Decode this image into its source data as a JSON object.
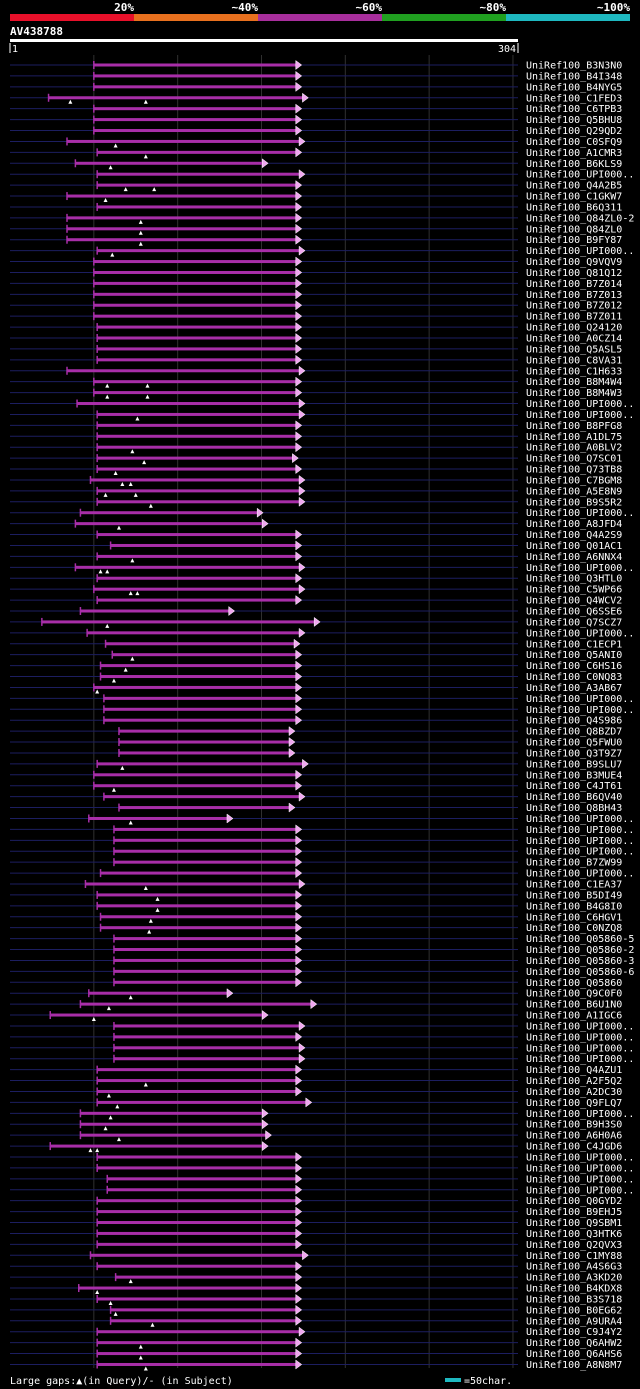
{
  "chart_data": {
    "type": "alignment-overview",
    "query_id": "AV438788",
    "query_length": 304,
    "axis_start": "1",
    "axis_end": "304",
    "identity_scale": [
      {
        "label": "20%",
        "color": "#e8102a"
      },
      {
        "label": "~40%",
        "color": "#e8701e"
      },
      {
        "label": "~60%",
        "color": "#a82e9c"
      },
      {
        "label": "~80%",
        "color": "#20a020"
      },
      {
        "label": "~100%",
        "color": "#1eb8c0"
      }
    ],
    "hit_color": "#a82ea8",
    "query_track_color": "#1c1e60",
    "legend": {
      "gaps_text": "Large gaps:▲(in Query)/- (in Subject)",
      "scale_text": "=50char.",
      "scale_length": 50,
      "scale_color": "#1eb8c0"
    },
    "hits": [
      {
        "name": "UniRef100_B3N3N0",
        "qs": 51,
        "qe": 175,
        "arrow": "right",
        "gaps": []
      },
      {
        "name": "UniRef100_B4I348",
        "qs": 51,
        "qe": 175,
        "arrow": "right",
        "gaps": []
      },
      {
        "name": "UniRef100_B4NYG5",
        "qs": 51,
        "qe": 175,
        "arrow": "right",
        "gaps": []
      },
      {
        "name": "UniRef100_C1FED3",
        "qs": 24,
        "qe": 179,
        "arrow": "right",
        "gaps": [
          37,
          82
        ]
      },
      {
        "name": "UniRef100_C6TPB3",
        "qs": 51,
        "qe": 175,
        "arrow": "right",
        "gaps": []
      },
      {
        "name": "UniRef100_Q5BHU8",
        "qs": 51,
        "qe": 175,
        "arrow": "right",
        "gaps": []
      },
      {
        "name": "UniRef100_Q29QD2",
        "qs": 51,
        "qe": 175,
        "arrow": "right",
        "gaps": []
      },
      {
        "name": "UniRef100_C0SFQ9",
        "qs": 35,
        "qe": 177,
        "arrow": "right",
        "gaps": [
          64
        ]
      },
      {
        "name": "UniRef100_A1CMR3",
        "qs": 53,
        "qe": 175,
        "arrow": "right",
        "gaps": [
          82
        ]
      },
      {
        "name": "UniRef100_B6KLS9",
        "qs": 40,
        "qe": 155,
        "arrow": "right",
        "gaps": [
          61
        ]
      },
      {
        "name": "UniRef100_UPI000..",
        "qs": 53,
        "qe": 177,
        "arrow": "right",
        "gaps": []
      },
      {
        "name": "UniRef100_Q4A2B5",
        "qs": 53,
        "qe": 175,
        "arrow": "right",
        "gaps": [
          70,
          87
        ]
      },
      {
        "name": "UniRef100_C1GKW7",
        "qs": 35,
        "qe": 175,
        "arrow": "right",
        "gaps": [
          58
        ]
      },
      {
        "name": "UniRef100_B6Q311",
        "qs": 53,
        "qe": 175,
        "arrow": "right",
        "gaps": []
      },
      {
        "name": "UniRef100_Q84ZL0-2",
        "qs": 35,
        "qe": 175,
        "arrow": "right",
        "gaps": [
          79
        ]
      },
      {
        "name": "UniRef100_Q84ZL0",
        "qs": 35,
        "qe": 175,
        "arrow": "right",
        "gaps": [
          79
        ]
      },
      {
        "name": "UniRef100_B9FY87",
        "qs": 35,
        "qe": 175,
        "arrow": "right",
        "gaps": [
          79
        ]
      },
      {
        "name": "UniRef100_UPI000..",
        "qs": 53,
        "qe": 177,
        "arrow": "right",
        "gaps": [
          62
        ]
      },
      {
        "name": "UniRef100_Q9VQV9",
        "qs": 51,
        "qe": 175,
        "arrow": "right",
        "gaps": []
      },
      {
        "name": "UniRef100_Q81Q12",
        "qs": 51,
        "qe": 175,
        "arrow": "right",
        "gaps": []
      },
      {
        "name": "UniRef100_B7Z014",
        "qs": 51,
        "qe": 175,
        "arrow": "right",
        "gaps": []
      },
      {
        "name": "UniRef100_B7Z013",
        "qs": 51,
        "qe": 175,
        "arrow": "right",
        "gaps": []
      },
      {
        "name": "UniRef100_B7Z012",
        "qs": 51,
        "qe": 175,
        "arrow": "right",
        "gaps": []
      },
      {
        "name": "UniRef100_B7Z011",
        "qs": 51,
        "qe": 175,
        "arrow": "right",
        "gaps": []
      },
      {
        "name": "UniRef100_Q24120",
        "qs": 53,
        "qe": 175,
        "arrow": "right",
        "gaps": []
      },
      {
        "name": "UniRef100_A0CZ14",
        "qs": 53,
        "qe": 175,
        "arrow": "right",
        "gaps": []
      },
      {
        "name": "UniRef100_Q5ASL5",
        "qs": 53,
        "qe": 175,
        "arrow": "right",
        "gaps": []
      },
      {
        "name": "UniRef100_C8VA31",
        "qs": 53,
        "qe": 175,
        "arrow": "right",
        "gaps": []
      },
      {
        "name": "UniRef100_C1H633",
        "qs": 35,
        "qe": 177,
        "arrow": "right",
        "gaps": []
      },
      {
        "name": "UniRef100_B8M4W4",
        "qs": 51,
        "qe": 175,
        "arrow": "right",
        "gaps": [
          59,
          83
        ]
      },
      {
        "name": "UniRef100_B8M4W3",
        "qs": 51,
        "qe": 175,
        "arrow": "right",
        "gaps": [
          59,
          83
        ]
      },
      {
        "name": "UniRef100_UPI000..",
        "qs": 41,
        "qe": 177,
        "arrow": "right",
        "gaps": []
      },
      {
        "name": "UniRef100_UPI000..",
        "qs": 53,
        "qe": 177,
        "arrow": "right",
        "gaps": [
          77
        ]
      },
      {
        "name": "UniRef100_B8PFG8",
        "qs": 53,
        "qe": 175,
        "arrow": "right",
        "gaps": []
      },
      {
        "name": "UniRef100_A1DL75",
        "qs": 53,
        "qe": 175,
        "arrow": "right",
        "gaps": []
      },
      {
        "name": "UniRef100_A0BLV2",
        "qs": 53,
        "qe": 175,
        "arrow": "right",
        "gaps": [
          74
        ]
      },
      {
        "name": "UniRef100_Q7SC01",
        "qs": 53,
        "qe": 173,
        "arrow": "right",
        "gaps": [
          81
        ]
      },
      {
        "name": "UniRef100_Q73TB8",
        "qs": 53,
        "qe": 175,
        "arrow": "right",
        "gaps": [
          64
        ]
      },
      {
        "name": "UniRef100_C7BGM8",
        "qs": 49,
        "qe": 177,
        "arrow": "right",
        "gaps": [
          68,
          73
        ]
      },
      {
        "name": "UniRef100_A5E8N9",
        "qs": 53,
        "qe": 177,
        "arrow": "right",
        "gaps": [
          58,
          76
        ]
      },
      {
        "name": "UniRef100_B9S5R2",
        "qs": 53,
        "qe": 177,
        "arrow": "right",
        "gaps": [
          85
        ]
      },
      {
        "name": "UniRef100_UPI000..",
        "qs": 43,
        "qe": 152,
        "arrow": "right",
        "gaps": []
      },
      {
        "name": "UniRef100_A8JFD4",
        "qs": 40,
        "qe": 155,
        "arrow": "right",
        "gaps": [
          66
        ]
      },
      {
        "name": "UniRef100_Q4A2S9",
        "qs": 53,
        "qe": 175,
        "arrow": "right",
        "gaps": []
      },
      {
        "name": "UniRef100_Q01AC1",
        "qs": 61,
        "qe": 175,
        "arrow": "right",
        "gaps": []
      },
      {
        "name": "UniRef100_A6NNX4",
        "qs": 53,
        "qe": 175,
        "arrow": "right",
        "gaps": [
          74
        ]
      },
      {
        "name": "UniRef100_UPI000..",
        "qs": 40,
        "qe": 177,
        "arrow": "right",
        "gaps": [
          55,
          59
        ]
      },
      {
        "name": "UniRef100_Q3HTL0",
        "qs": 53,
        "qe": 175,
        "arrow": "right",
        "gaps": []
      },
      {
        "name": "UniRef100_C5WP66",
        "qs": 51,
        "qe": 177,
        "arrow": "right",
        "gaps": [
          73,
          77
        ]
      },
      {
        "name": "UniRef100_Q4WCV2",
        "qs": 53,
        "qe": 175,
        "arrow": "right",
        "gaps": []
      },
      {
        "name": "UniRef100_Q6SSE6",
        "qs": 43,
        "qe": 135,
        "arrow": "right",
        "gaps": []
      },
      {
        "name": "UniRef100_Q7SCZ7",
        "qs": 20,
        "qe": 186,
        "arrow": "right",
        "gaps": [
          59
        ]
      },
      {
        "name": "UniRef100_UPI000..",
        "qs": 47,
        "qe": 177,
        "arrow": "right",
        "gaps": []
      },
      {
        "name": "UniRef100_C1ECP1",
        "qs": 58,
        "qe": 174,
        "arrow": "right",
        "gaps": []
      },
      {
        "name": "UniRef100_Q5ANI0",
        "qs": 62,
        "qe": 175,
        "arrow": "right",
        "gaps": [
          74
        ]
      },
      {
        "name": "UniRef100_C6HS16",
        "qs": 55,
        "qe": 175,
        "arrow": "right",
        "gaps": [
          70
        ]
      },
      {
        "name": "UniRef100_C0NQ83",
        "qs": 55,
        "qe": 175,
        "arrow": "right",
        "gaps": [
          63
        ]
      },
      {
        "name": "UniRef100_A3AB67",
        "qs": 51,
        "qe": 175,
        "arrow": "right",
        "gaps": [
          53
        ]
      },
      {
        "name": "UniRef100_UPI000..",
        "qs": 57,
        "qe": 175,
        "arrow": "right",
        "gaps": []
      },
      {
        "name": "UniRef100_UPI000..",
        "qs": 57,
        "qe": 175,
        "arrow": "right",
        "gaps": []
      },
      {
        "name": "UniRef100_Q4S986",
        "qs": 57,
        "qe": 175,
        "arrow": "right",
        "gaps": []
      },
      {
        "name": "UniRef100_Q8BZD7",
        "qs": 66,
        "qe": 171,
        "arrow": "right",
        "gaps": []
      },
      {
        "name": "UniRef100_Q5FWU0",
        "qs": 66,
        "qe": 171,
        "arrow": "right",
        "gaps": []
      },
      {
        "name": "UniRef100_Q3T9Z7",
        "qs": 66,
        "qe": 171,
        "arrow": "right",
        "gaps": []
      },
      {
        "name": "UniRef100_B9SLU7",
        "qs": 53,
        "qe": 179,
        "arrow": "right",
        "gaps": [
          68
        ]
      },
      {
        "name": "UniRef100_B3MUE4",
        "qs": 51,
        "qe": 175,
        "arrow": "right",
        "gaps": []
      },
      {
        "name": "UniRef100_C4JT61",
        "qs": 51,
        "qe": 175,
        "arrow": "right",
        "gaps": [
          63
        ]
      },
      {
        "name": "UniRef100_B6QV40",
        "qs": 57,
        "qe": 177,
        "arrow": "right",
        "gaps": []
      },
      {
        "name": "UniRef100_Q8BH43",
        "qs": 66,
        "qe": 171,
        "arrow": "right",
        "gaps": []
      },
      {
        "name": "UniRef100_UPI000..",
        "qs": 48,
        "qe": 134,
        "arrow": "right",
        "gaps": [
          73
        ]
      },
      {
        "name": "UniRef100_UPI000..",
        "qs": 63,
        "qe": 175,
        "arrow": "right",
        "gaps": []
      },
      {
        "name": "UniRef100_UPI000..",
        "qs": 63,
        "qe": 175,
        "arrow": "right",
        "gaps": []
      },
      {
        "name": "UniRef100_UPI000..",
        "qs": 63,
        "qe": 175,
        "arrow": "right",
        "gaps": []
      },
      {
        "name": "UniRef100_B7ZW99",
        "qs": 63,
        "qe": 175,
        "arrow": "right",
        "gaps": []
      },
      {
        "name": "UniRef100_UPI000..",
        "qs": 55,
        "qe": 175,
        "arrow": "right",
        "gaps": []
      },
      {
        "name": "UniRef100_C1EA37",
        "qs": 46,
        "qe": 177,
        "arrow": "right",
        "gaps": [
          82
        ]
      },
      {
        "name": "UniRef100_B5DI49",
        "qs": 53,
        "qe": 175,
        "arrow": "right",
        "gaps": [
          89
        ]
      },
      {
        "name": "UniRef100_B4G8I0",
        "qs": 53,
        "qe": 175,
        "arrow": "right",
        "gaps": [
          89
        ]
      },
      {
        "name": "UniRef100_C6HGV1",
        "qs": 55,
        "qe": 175,
        "arrow": "right",
        "gaps": [
          85
        ]
      },
      {
        "name": "UniRef100_C0NZQ8",
        "qs": 55,
        "qe": 175,
        "arrow": "right",
        "gaps": [
          84
        ]
      },
      {
        "name": "UniRef100_Q05860-5",
        "qs": 63,
        "qe": 175,
        "arrow": "right",
        "gaps": []
      },
      {
        "name": "UniRef100_Q05860-2",
        "qs": 63,
        "qe": 175,
        "arrow": "right",
        "gaps": []
      },
      {
        "name": "UniRef100_Q05860-3",
        "qs": 63,
        "qe": 175,
        "arrow": "right",
        "gaps": []
      },
      {
        "name": "UniRef100_Q05860-6",
        "qs": 63,
        "qe": 175,
        "arrow": "right",
        "gaps": []
      },
      {
        "name": "UniRef100_Q05860",
        "qs": 63,
        "qe": 175,
        "arrow": "right",
        "gaps": []
      },
      {
        "name": "UniRef100_Q9C0F0",
        "qs": 48,
        "qe": 134,
        "arrow": "right",
        "gaps": [
          73
        ]
      },
      {
        "name": "UniRef100_B6U1N0",
        "qs": 43,
        "qe": 184,
        "arrow": "right",
        "gaps": [
          60
        ]
      },
      {
        "name": "UniRef100_A1IGC6",
        "qs": 25,
        "qe": 155,
        "arrow": "right",
        "gaps": [
          51
        ]
      },
      {
        "name": "UniRef100_UPI000..",
        "qs": 63,
        "qe": 177,
        "arrow": "right",
        "gaps": []
      },
      {
        "name": "UniRef100_UPI000..",
        "qs": 63,
        "qe": 175,
        "arrow": "right",
        "gaps": []
      },
      {
        "name": "UniRef100_UPI000..",
        "qs": 63,
        "qe": 177,
        "arrow": "right",
        "gaps": []
      },
      {
        "name": "UniRef100_UPI000..",
        "qs": 63,
        "qe": 177,
        "arrow": "right",
        "gaps": []
      },
      {
        "name": "UniRef100_Q4AZU1",
        "qs": 53,
        "qe": 175,
        "arrow": "right",
        "gaps": []
      },
      {
        "name": "UniRef100_A2F5Q2",
        "qs": 53,
        "qe": 175,
        "arrow": "right",
        "gaps": [
          82
        ]
      },
      {
        "name": "UniRef100_A2DC30",
        "qs": 53,
        "qe": 175,
        "arrow": "right",
        "gaps": [
          60
        ]
      },
      {
        "name": "UniRef100_Q9FLQ7",
        "qs": 53,
        "qe": 181,
        "arrow": "right",
        "gaps": [
          65
        ]
      },
      {
        "name": "UniRef100_UPI000..",
        "qs": 43,
        "qe": 155,
        "arrow": "right",
        "gaps": [
          61
        ]
      },
      {
        "name": "UniRef100_B9H3S0",
        "qs": 43,
        "qe": 155,
        "arrow": "right",
        "gaps": [
          58
        ]
      },
      {
        "name": "UniRef100_A6H0A6",
        "qs": 43,
        "qe": 157,
        "arrow": "right",
        "gaps": [
          66
        ]
      },
      {
        "name": "UniRef100_C4JGD6",
        "qs": 25,
        "qe": 155,
        "arrow": "right",
        "gaps": [
          49,
          53
        ]
      },
      {
        "name": "UniRef100_UPI000..",
        "qs": 53,
        "qe": 175,
        "arrow": "right",
        "gaps": []
      },
      {
        "name": "UniRef100_UPI000..",
        "qs": 53,
        "qe": 175,
        "arrow": "right",
        "gaps": []
      },
      {
        "name": "UniRef100_UPI000..",
        "qs": 59,
        "qe": 175,
        "arrow": "right",
        "gaps": []
      },
      {
        "name": "UniRef100_UPI000..",
        "qs": 59,
        "qe": 175,
        "arrow": "right",
        "gaps": []
      },
      {
        "name": "UniRef100_Q0GYD2",
        "qs": 53,
        "qe": 175,
        "arrow": "right",
        "gaps": []
      },
      {
        "name": "UniRef100_B9EHJ5",
        "qs": 53,
        "qe": 175,
        "arrow": "right",
        "gaps": []
      },
      {
        "name": "UniRef100_Q9SBM1",
        "qs": 53,
        "qe": 175,
        "arrow": "right",
        "gaps": []
      },
      {
        "name": "UniRef100_Q3HTK6",
        "qs": 53,
        "qe": 175,
        "arrow": "right",
        "gaps": []
      },
      {
        "name": "UniRef100_Q2QVX3",
        "qs": 53,
        "qe": 175,
        "arrow": "right",
        "gaps": []
      },
      {
        "name": "UniRef100_C1MY88",
        "qs": 49,
        "qe": 179,
        "arrow": "right",
        "gaps": []
      },
      {
        "name": "UniRef100_A4S6G3",
        "qs": 53,
        "qe": 175,
        "arrow": "right",
        "gaps": []
      },
      {
        "name": "UniRef100_A3KD20",
        "qs": 64,
        "qe": 175,
        "arrow": "right",
        "gaps": [
          73
        ]
      },
      {
        "name": "UniRef100_B4KDX8",
        "qs": 42,
        "qe": 175,
        "arrow": "right",
        "gaps": [
          53
        ]
      },
      {
        "name": "UniRef100_B3S718",
        "qs": 53,
        "qe": 175,
        "arrow": "right",
        "gaps": [
          61
        ]
      },
      {
        "name": "UniRef100_B0EG62",
        "qs": 61,
        "qe": 175,
        "arrow": "right",
        "gaps": [
          64
        ]
      },
      {
        "name": "UniRef100_A9URA4",
        "qs": 61,
        "qe": 175,
        "arrow": "right",
        "gaps": [
          86
        ]
      },
      {
        "name": "UniRef100_C9J4Y2",
        "qs": 53,
        "qe": 177,
        "arrow": "right",
        "gaps": []
      },
      {
        "name": "UniRef100_Q6AHW2",
        "qs": 53,
        "qe": 175,
        "arrow": "right",
        "gaps": [
          79
        ]
      },
      {
        "name": "UniRef100_Q6AHS6",
        "qs": 53,
        "qe": 175,
        "arrow": "right",
        "gaps": [
          79
        ]
      },
      {
        "name": "UniRef100_A8N8M7",
        "qs": 53,
        "qe": 175,
        "arrow": "right",
        "gaps": [
          82
        ]
      }
    ]
  }
}
